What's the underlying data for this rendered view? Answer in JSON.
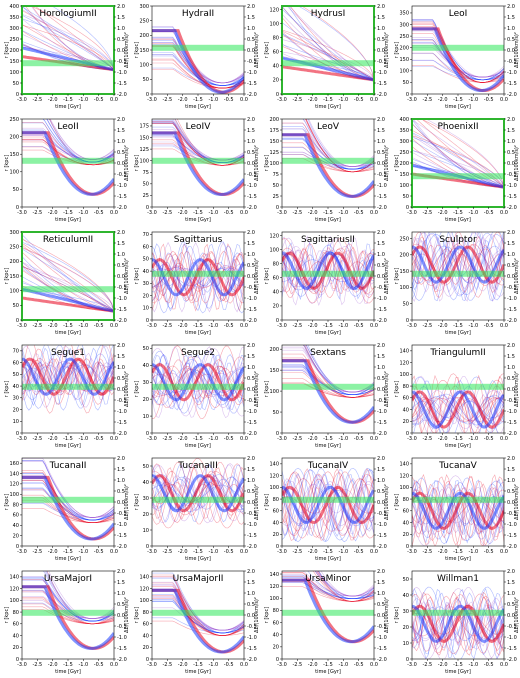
{
  "figure": {
    "xlabel": "time [Gyr]",
    "ylabel_left": "r [kpc]",
    "ylabel_right": "ΔE/(100km/s)²",
    "xticks": [
      -3.0,
      -2.5,
      -2.0,
      -1.5,
      -1.0,
      -0.5,
      0.0
    ],
    "right_ticks": [
      -2.0,
      -1.5,
      -1.0,
      -0.5,
      0.0,
      0.5,
      1.0,
      1.5,
      2.0
    ],
    "colors": {
      "red": "#e8001c",
      "blue": "#1a3cff",
      "green": "#2ee85a",
      "purple": "#9a4fd0",
      "highlight_frame": "#2fb52f"
    }
  },
  "chart_data": [
    {
      "type": "line",
      "title": "HorologiumII",
      "yticks": [
        0,
        50,
        100,
        150,
        200,
        250,
        300,
        350,
        400
      ],
      "ylim": [
        0,
        400
      ],
      "highlight": true,
      "mode": "fan_down",
      "base": 110
    },
    {
      "type": "line",
      "title": "HydraII",
      "yticks": [
        0,
        50,
        100,
        150,
        200,
        250,
        300
      ],
      "ylim": [
        0,
        300
      ],
      "highlight": false,
      "mode": "dip",
      "base": 20
    },
    {
      "type": "line",
      "title": "HydrusI",
      "yticks": [
        0,
        20,
        40,
        60,
        80,
        100,
        120
      ],
      "ylim": [
        0,
        125
      ],
      "highlight": true,
      "mode": "fan_down",
      "base": 20
    },
    {
      "type": "line",
      "title": "LeoI",
      "yticks": [
        0,
        50,
        100,
        150,
        200,
        250,
        300,
        350
      ],
      "ylim": [
        0,
        380
      ],
      "highlight": false,
      "mode": "dip",
      "base": 50
    },
    {
      "type": "line",
      "title": "LeoII",
      "yticks": [
        0,
        50,
        100,
        150,
        200,
        250
      ],
      "ylim": [
        0,
        250
      ],
      "highlight": false,
      "mode": "dip",
      "base": 120
    },
    {
      "type": "line",
      "title": "LeoIV",
      "yticks": [
        0,
        25,
        50,
        75,
        100,
        125,
        150,
        175
      ],
      "ylim": [
        0,
        190
      ],
      "highlight": false,
      "mode": "dip",
      "base": 90
    },
    {
      "type": "line",
      "title": "LeoV",
      "yticks": [
        0,
        25,
        50,
        75,
        100,
        125,
        150,
        175,
        200
      ],
      "ylim": [
        0,
        200
      ],
      "highlight": false,
      "mode": "dip",
      "base": 80
    },
    {
      "type": "line",
      "title": "PhoenixII",
      "yticks": [
        0,
        50,
        100,
        150,
        200,
        250,
        300,
        350,
        400
      ],
      "ylim": [
        0,
        400
      ],
      "highlight": true,
      "mode": "fan_down",
      "base": 90
    },
    {
      "type": "line",
      "title": "ReticulumII",
      "yticks": [
        0,
        50,
        100,
        150,
        200,
        250,
        300
      ],
      "ylim": [
        0,
        300
      ],
      "highlight": true,
      "mode": "fan_down",
      "base": 30
    },
    {
      "type": "line",
      "title": "Sagittarius",
      "yticks": [
        0,
        10,
        20,
        30,
        40,
        50,
        60,
        70
      ],
      "ylim": [
        0,
        72
      ],
      "highlight": false,
      "mode": "osc",
      "base": 35
    },
    {
      "type": "line",
      "title": "SagittariusII",
      "yticks": [
        0,
        20,
        40,
        60,
        80,
        100,
        120
      ],
      "ylim": [
        0,
        125
      ],
      "highlight": false,
      "mode": "osc",
      "base": 70
    },
    {
      "type": "line",
      "title": "Sculptor",
      "yticks": [
        0,
        50,
        100,
        150,
        200,
        250
      ],
      "ylim": [
        0,
        270
      ],
      "highlight": false,
      "mode": "osc",
      "base": 170
    },
    {
      "type": "line",
      "title": "Segue1",
      "yticks": [
        0,
        10,
        20,
        30,
        40,
        50,
        60,
        70
      ],
      "ylim": [
        0,
        75
      ],
      "highlight": false,
      "mode": "osc",
      "base": 48
    },
    {
      "type": "line",
      "title": "Segue2",
      "yticks": [
        0,
        10,
        20,
        30,
        40,
        50
      ],
      "ylim": [
        0,
        52
      ],
      "highlight": false,
      "mode": "osc",
      "base": 30
    },
    {
      "type": "line",
      "title": "Sextans",
      "yticks": [
        0,
        50,
        100,
        150,
        200
      ],
      "ylim": [
        0,
        210
      ],
      "highlight": false,
      "mode": "dip",
      "base": 85
    },
    {
      "type": "line",
      "title": "TriangulumII",
      "yticks": [
        0,
        20,
        40,
        60,
        80,
        100,
        120,
        140
      ],
      "ylim": [
        0,
        150
      ],
      "highlight": false,
      "mode": "osc",
      "base": 40
    },
    {
      "type": "line",
      "title": "TucanaII",
      "yticks": [
        0,
        20,
        40,
        60,
        80,
        100,
        120,
        140,
        160
      ],
      "ylim": [
        0,
        170
      ],
      "highlight": false,
      "mode": "dip",
      "base": 45
    },
    {
      "type": "line",
      "title": "TucanaIII",
      "yticks": [
        0,
        10,
        20,
        30,
        40,
        50
      ],
      "ylim": [
        0,
        55
      ],
      "highlight": false,
      "mode": "osc",
      "base": 33
    },
    {
      "type": "line",
      "title": "TucanaIV",
      "yticks": [
        0,
        20,
        40,
        60,
        80,
        100,
        120,
        140
      ],
      "ylim": [
        0,
        150
      ],
      "highlight": false,
      "mode": "osc",
      "base": 70
    },
    {
      "type": "line",
      "title": "TucanaV",
      "yticks": [
        0,
        20,
        40,
        60,
        80,
        100,
        120,
        140
      ],
      "ylim": [
        0,
        150
      ],
      "highlight": false,
      "mode": "osc",
      "base": 60
    },
    {
      "type": "line",
      "title": "UrsaMajorI",
      "yticks": [
        0,
        20,
        40,
        60,
        80,
        100,
        120,
        140
      ],
      "ylim": [
        0,
        150
      ],
      "highlight": false,
      "mode": "dip",
      "base": 60
    },
    {
      "type": "line",
      "title": "UrsaMajorII",
      "yticks": [
        0,
        20,
        40,
        60,
        80,
        100,
        120,
        140
      ],
      "ylim": [
        0,
        150
      ],
      "highlight": false,
      "mode": "dip",
      "base": 40
    },
    {
      "type": "line",
      "title": "UrsaMinor",
      "yticks": [
        0,
        20,
        40,
        60,
        80,
        100,
        120,
        140
      ],
      "ylim": [
        0,
        145
      ],
      "highlight": false,
      "mode": "dip",
      "base": 95
    },
    {
      "type": "line",
      "title": "Willman1",
      "yticks": [
        0,
        10,
        20,
        30,
        40,
        50
      ],
      "ylim": [
        0,
        55
      ],
      "highlight": false,
      "mode": "osc",
      "base": 22
    }
  ]
}
